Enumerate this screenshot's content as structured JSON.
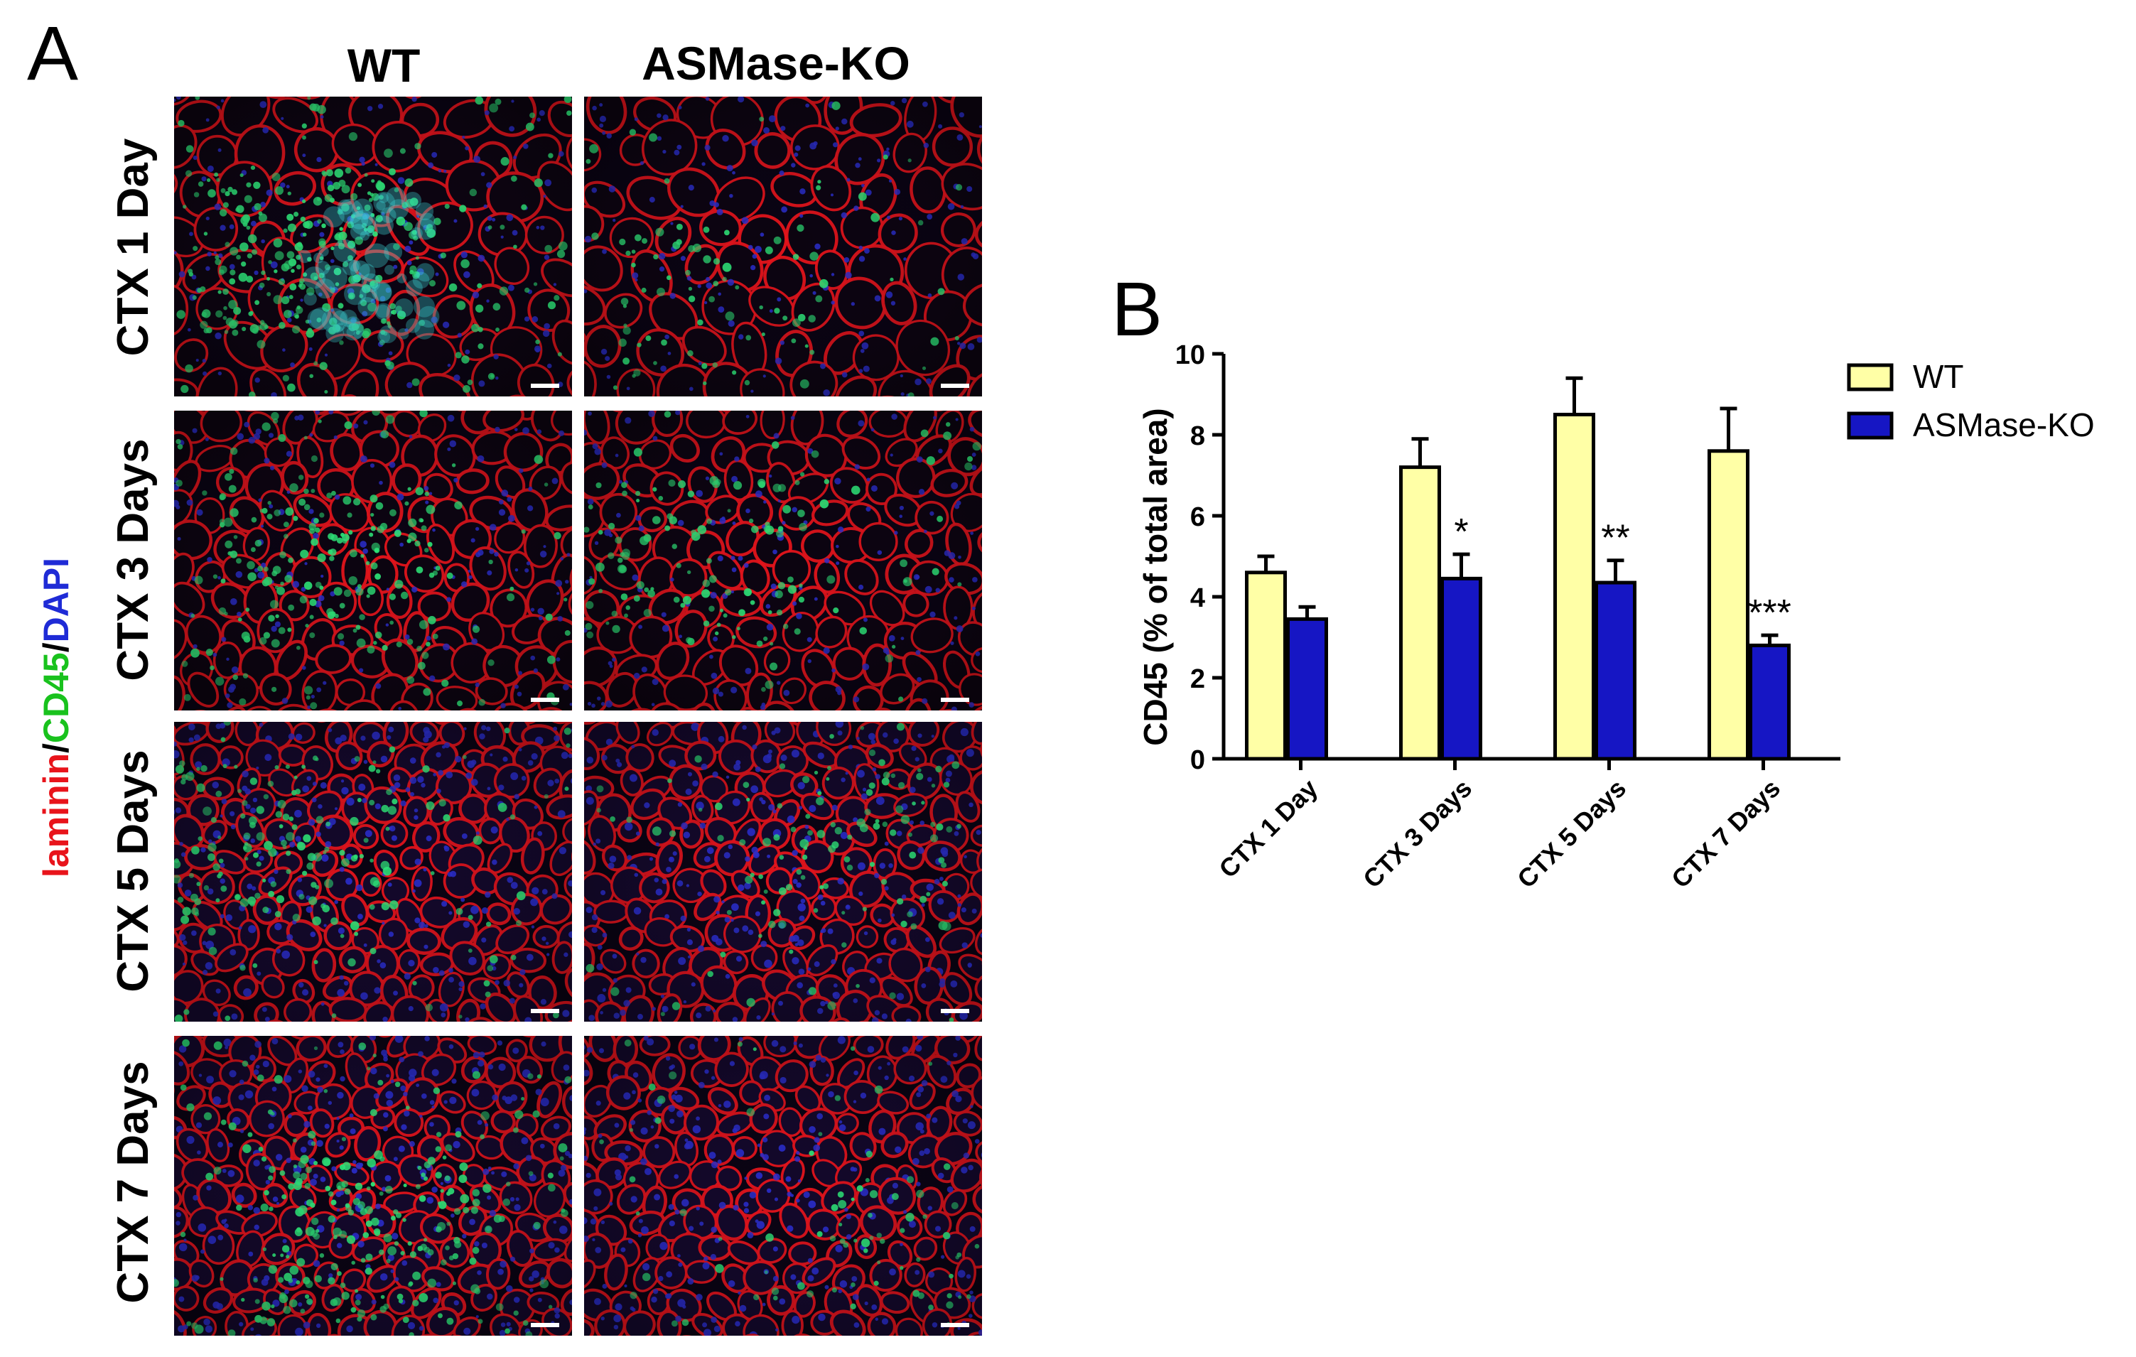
{
  "panel_a": {
    "label": "A",
    "columns": [
      "WT",
      "ASMase-KO"
    ],
    "rows": [
      "CTX 1 Day",
      "CTX 3 Days",
      "CTX 5 Days",
      "CTX 7 Days"
    ],
    "stain_label": {
      "parts": [
        {
          "text": "laminin",
          "color": "#e8141b"
        },
        {
          "text": "/",
          "color": "#000000"
        },
        {
          "text": "CD45",
          "color": "#19c21d"
        },
        {
          "text": "/",
          "color": "#000000"
        },
        {
          "text": "DAPI",
          "color": "#1f2bd6"
        }
      ]
    },
    "micrograph_colors": {
      "background": "#090312",
      "laminin": "#e8141b",
      "cd45": "#2ee879",
      "dapi": "#2b2fd0",
      "cyan": "#40e0e0",
      "scalebar": "#ffffff"
    }
  },
  "chart_data": {
    "panel_label": "B",
    "type": "bar",
    "categories": [
      "CTX 1 Day",
      "CTX 3 Days",
      "CTX 5 Days",
      "CTX 7 Days"
    ],
    "series": [
      {
        "name": "WT",
        "color": "#ffffa6",
        "values": [
          4.6,
          7.2,
          8.5,
          7.6
        ],
        "errors": [
          0.4,
          0.7,
          0.9,
          1.05
        ]
      },
      {
        "name": "ASMase-KO",
        "color": "#1616c4",
        "values": [
          3.45,
          4.45,
          4.35,
          2.8
        ],
        "errors": [
          0.3,
          0.6,
          0.55,
          0.25
        ]
      }
    ],
    "significance": [
      "",
      "*",
      "**",
      "***"
    ],
    "xlabel": "",
    "ylabel": "CD45 (% of total area)",
    "ylim": [
      0,
      10
    ],
    "yticks": [
      0,
      2,
      4,
      6,
      8,
      10
    ],
    "legend_position": "top-right",
    "grid": false
  }
}
